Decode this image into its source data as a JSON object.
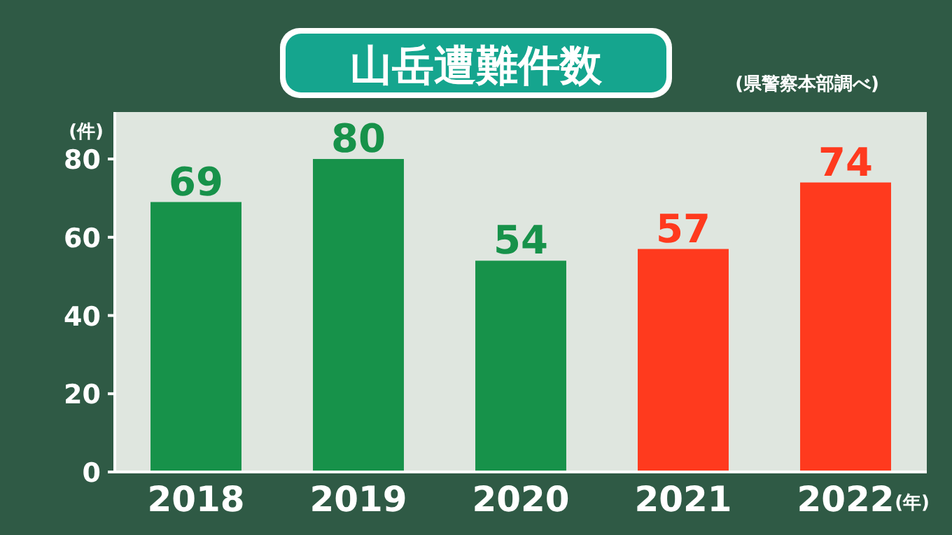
{
  "chart_data": {
    "type": "bar",
    "title": "山岳遭難件数",
    "annotations": [
      "(県警察本部調べ)"
    ],
    "ylabel": "(件)",
    "xlabel": "(年)",
    "categories": [
      "2018",
      "2019",
      "2020",
      "2021",
      "2022"
    ],
    "values": [
      69,
      80,
      54,
      57,
      74
    ],
    "colors": [
      "#17924a",
      "#17924a",
      "#17924a",
      "#ff3a1e",
      "#ff3a1e"
    ],
    "ylim": [
      0,
      92
    ],
    "yticks": [
      0,
      20,
      40,
      60,
      80
    ],
    "data_labels": true
  }
}
